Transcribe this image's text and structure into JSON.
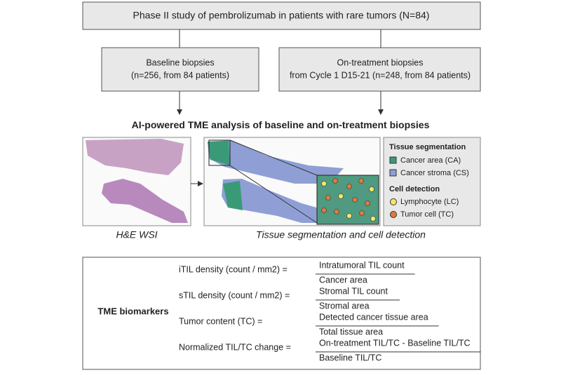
{
  "header": {
    "title": "Phase II study of pembrolizumab in patients with rare tumors (N=84)"
  },
  "boxes": [
    {
      "line1": "Baseline biopsies",
      "line2": "(n=256, from 84 patients)"
    },
    {
      "line1": "On-treatment biopsies",
      "line2": "from Cycle 1 D15-21 (n=248, from 84 patients)"
    }
  ],
  "analysis": {
    "title_bold": "AI-powered",
    "title_rest": "TME analysis of baseline and on-treatment biopsies",
    "captions": [
      "H&E WSI",
      "Tissue segmentation and cell detection"
    ],
    "legend": {
      "segmentation_title": "Tissue segmentation",
      "segmentation_items": [
        "Cancer area (CA)",
        "Cancer stroma (CS)"
      ],
      "cell_title": "Cell detection",
      "cell_items": [
        "Lymphocyte (LC)",
        "Tumor cell (TC)"
      ]
    }
  },
  "biomarkers": {
    "title": "TME biomarkers",
    "rows": [
      {
        "label": "iTIL density (count / mm2) =",
        "numerator": "Intratumoral TIL count",
        "denominator": "Cancer area"
      },
      {
        "label": "sTIL density (count / mm2) =",
        "numerator": "Stromal TIL count",
        "denominator": "Stromal area"
      },
      {
        "label": "Tumor content (TC) =",
        "numerator": "Detected cancer tissue area",
        "denominator": "Total tissue area"
      },
      {
        "label": "Normalized TIL/TC change =",
        "numerator": "On-treatment TIL/TC - Baseline TIL/TC",
        "denominator": "Baseline TIL/TC"
      }
    ]
  }
}
